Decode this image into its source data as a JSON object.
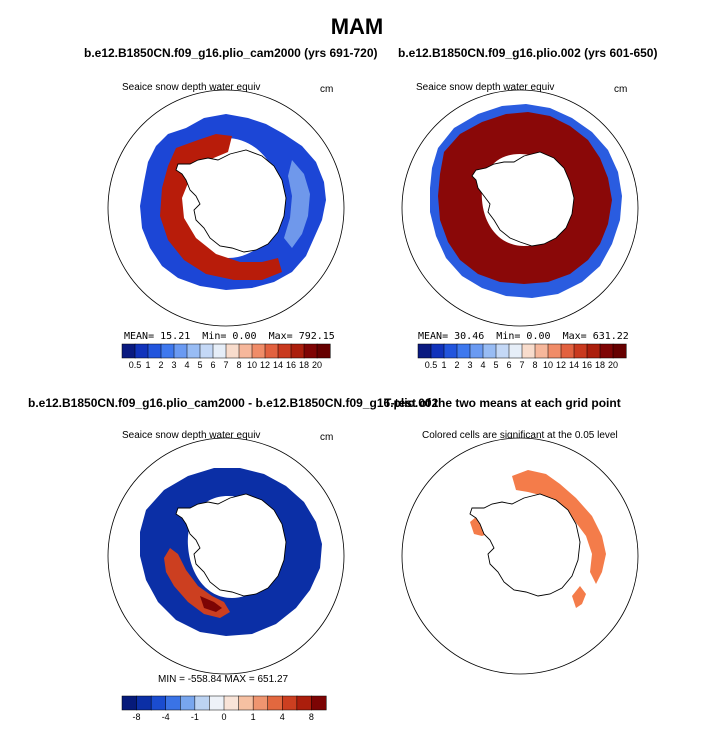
{
  "title": "MAM",
  "panels": [
    {
      "title": "b.e12.B1850CN.f09_g16.plio_cam2000 (yrs 691-720)",
      "subtitle": "Seaice snow depth water equiv",
      "units": "cm",
      "stats": {
        "mean_label": "MEAN=",
        "mean": "15.21",
        "min_label": "Min=",
        "min": "0.00",
        "max_label": "Max=",
        "max": "792.15"
      }
    },
    {
      "title": "b.e12.B1850CN.f09_g16.plio.002 (yrs 601-650)",
      "subtitle": "Seaice snow depth water equiv",
      "units": "cm",
      "stats": {
        "mean_label": "MEAN=",
        "mean": "30.46",
        "min_label": "Min=",
        "min": "0.00",
        "max_label": "Max=",
        "max": "631.22"
      }
    },
    {
      "title": "b.e12.B1850CN.f09_g16.plio_cam2000 - b.e12.B1850CN.f09_g16.plio.002",
      "subtitle": "Seaice snow depth water equiv",
      "units": "cm",
      "stats_text": "MIN = -558.84  MAX = 651.27"
    },
    {
      "title": "T-test of the two means at each grid point",
      "subtitle": "Colored cells are significant at the 0.05 level"
    }
  ],
  "chart_data": [
    {
      "type": "heatmap",
      "title": "b.e12.B1850CN.f09_g16.plio_cam2000 (yrs 691-720)",
      "variable": "Seaice snow depth water equiv",
      "units": "cm",
      "projection": "south-polar-stereographic",
      "colorbar_levels": [
        "0.5",
        "1",
        "2",
        "3",
        "4",
        "5",
        "6",
        "7",
        "8",
        "10",
        "12",
        "14",
        "16",
        "18",
        "20"
      ],
      "colorbar_colors": [
        "#0a1a80",
        "#1133bb",
        "#2255dd",
        "#3e78ee",
        "#6a9af2",
        "#98bcf4",
        "#c4d8f6",
        "#e6eef8",
        "#f8dccc",
        "#f6b79b",
        "#f08c68",
        "#e2613f",
        "#c9391e",
        "#ab1e0c",
        "#7f0404",
        "#660000"
      ],
      "mean": 15.21,
      "min": 0.0,
      "max": 792.15
    },
    {
      "type": "heatmap",
      "title": "b.e12.B1850CN.f09_g16.plio.002 (yrs 601-650)",
      "variable": "Seaice snow depth water equiv",
      "units": "cm",
      "projection": "south-polar-stereographic",
      "colorbar_levels": [
        "0.5",
        "1",
        "2",
        "3",
        "4",
        "5",
        "6",
        "7",
        "8",
        "10",
        "12",
        "14",
        "16",
        "18",
        "20"
      ],
      "colorbar_colors": [
        "#0a1a80",
        "#1133bb",
        "#2255dd",
        "#3e78ee",
        "#6a9af2",
        "#98bcf4",
        "#c4d8f6",
        "#e6eef8",
        "#f8dccc",
        "#f6b79b",
        "#f08c68",
        "#e2613f",
        "#c9391e",
        "#ab1e0c",
        "#7f0404",
        "#660000"
      ],
      "mean": 30.46,
      "min": 0.0,
      "max": 631.22
    },
    {
      "type": "heatmap",
      "title": "b.e12.B1850CN.f09_g16.plio_cam2000 - b.e12.B1850CN.f09_g16.plio.002",
      "variable": "Seaice snow depth water equiv",
      "units": "cm",
      "projection": "south-polar-stereographic",
      "colorbar_levels": [
        "-8",
        "-4",
        "-1",
        "0",
        "1",
        "4",
        "8"
      ],
      "colorbar_label_slots": [
        1,
        3,
        5,
        7,
        9,
        11,
        13
      ],
      "colorbar_colors": [
        "#061a7a",
        "#0b2fa6",
        "#1a4cd0",
        "#3a73e6",
        "#78a6ee",
        "#bcd3f2",
        "#eef2f8",
        "#f9e4d8",
        "#f6c0a2",
        "#ef9570",
        "#e2683f",
        "#cc3f20",
        "#ab1e0c",
        "#7c0404"
      ],
      "min": -558.84,
      "max": 651.27
    },
    {
      "type": "heatmap",
      "title": "T-test of the two means at each grid point",
      "note": "Colored cells are significant at the 0.05 level",
      "projection": "south-polar-stereographic",
      "significant_color": "#f47c4a"
    }
  ]
}
